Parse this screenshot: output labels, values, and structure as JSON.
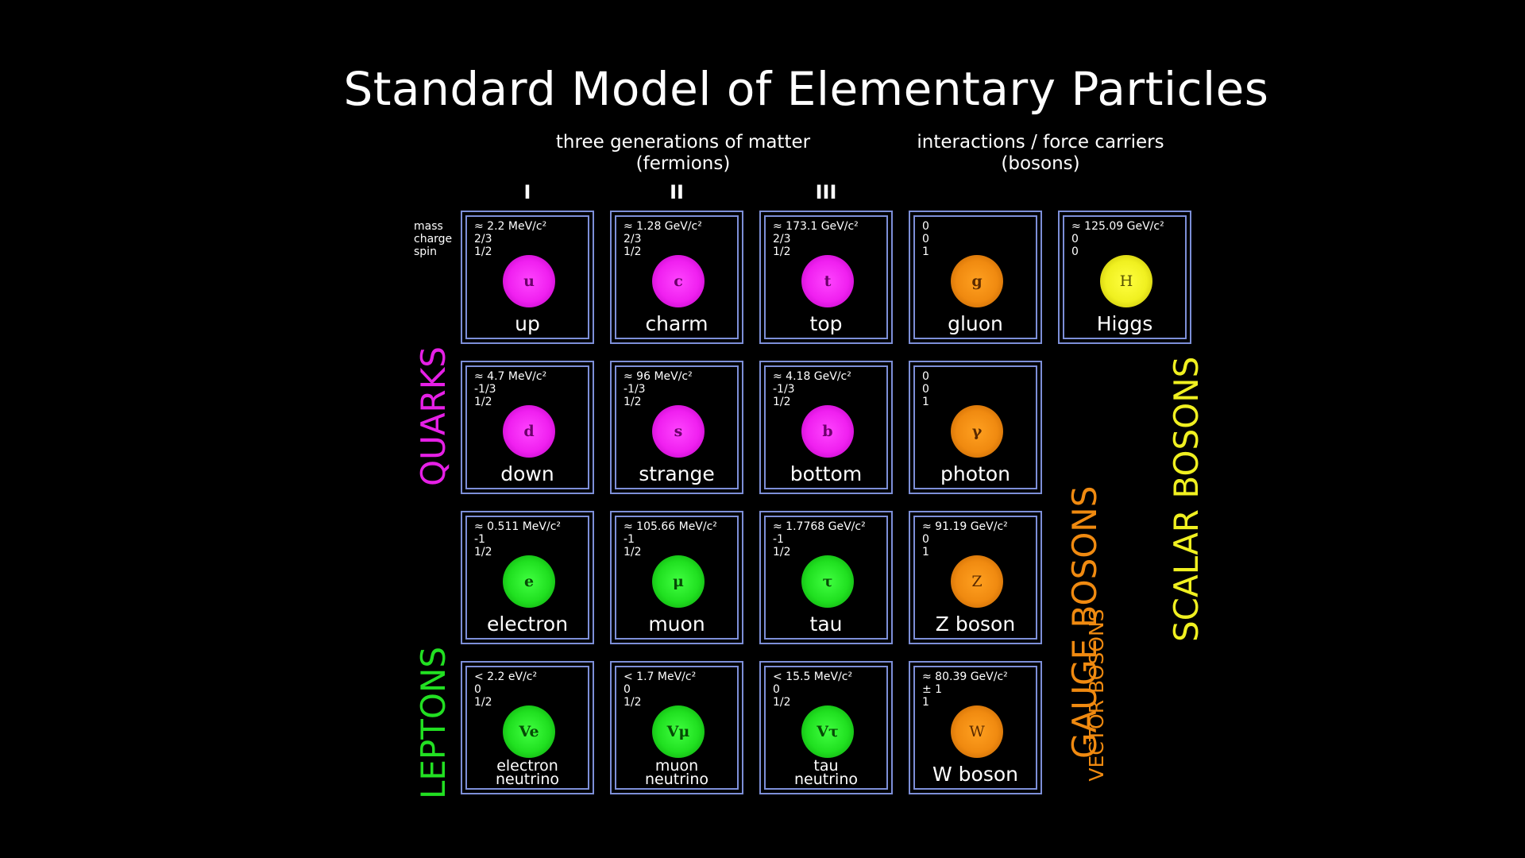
{
  "title": "Standard Model of Elementary Particles",
  "fermions_header": {
    "line1": "three generations of matter",
    "line2": "(fermions)"
  },
  "bosons_header": {
    "line1": "interactions / force carriers",
    "line2": "(bosons)"
  },
  "generations": [
    "I",
    "II",
    "III"
  ],
  "property_labels": [
    "mass",
    "charge",
    "spin"
  ],
  "group_labels": {
    "quarks": "QUARKS",
    "leptons": "LEPTONS",
    "gauge_bosons": "GAUGE BOSONS",
    "vector_bosons": "VECTOR BOSONS",
    "scalar_bosons": "SCALAR BOSONS"
  },
  "colors": {
    "quarks": "#e620e6",
    "leptons": "#22e022",
    "gauge_bosons": "#f08a10",
    "scalar_bosons": "#f0f020",
    "cell_border": "#7d8fd8"
  },
  "particles": [
    {
      "symbol": "u",
      "name": "up",
      "mass": "≈ 2.2 MeV/c²",
      "charge": "2/3",
      "spin": "1/2",
      "color": "magenta"
    },
    {
      "symbol": "c",
      "name": "charm",
      "mass": "≈ 1.28 GeV/c²",
      "charge": "2/3",
      "spin": "1/2",
      "color": "magenta"
    },
    {
      "symbol": "t",
      "name": "top",
      "mass": "≈ 173.1 GeV/c²",
      "charge": "2/3",
      "spin": "1/2",
      "color": "magenta"
    },
    {
      "symbol": "g",
      "name": "gluon",
      "mass": "0",
      "charge": "0",
      "spin": "1",
      "color": "orange"
    },
    {
      "symbol": "H",
      "name": "Higgs",
      "mass": "≈ 125.09 GeV/c²",
      "charge": "0",
      "spin": "0",
      "color": "yellow"
    },
    {
      "symbol": "d",
      "name": "down",
      "mass": "≈ 4.7 MeV/c²",
      "charge": "-1/3",
      "spin": "1/2",
      "color": "magenta"
    },
    {
      "symbol": "s",
      "name": "strange",
      "mass": "≈ 96 MeV/c²",
      "charge": "-1/3",
      "spin": "1/2",
      "color": "magenta"
    },
    {
      "symbol": "b",
      "name": "bottom",
      "mass": "≈ 4.18 GeV/c²",
      "charge": "-1/3",
      "spin": "1/2",
      "color": "magenta"
    },
    {
      "symbol": "γ",
      "name": "photon",
      "mass": "0",
      "charge": "0",
      "spin": "1",
      "color": "orange"
    },
    {
      "symbol": "e",
      "name": "electron",
      "mass": "≈ 0.511 MeV/c²",
      "charge": "-1",
      "spin": "1/2",
      "color": "green"
    },
    {
      "symbol": "μ",
      "name": "muon",
      "mass": "≈ 105.66 MeV/c²",
      "charge": "-1",
      "spin": "1/2",
      "color": "green"
    },
    {
      "symbol": "τ",
      "name": "tau",
      "mass": "≈ 1.7768 GeV/c²",
      "charge": "-1",
      "spin": "1/2",
      "color": "green"
    },
    {
      "symbol": "Z",
      "name": "Z boson",
      "mass": "≈ 91.19 GeV/c²",
      "charge": "0",
      "spin": "1",
      "color": "orange"
    },
    {
      "symbol": "Ve",
      "name_line1": "electron",
      "name_line2": "neutrino",
      "mass": "< 2.2 eV/c²",
      "charge": "0",
      "spin": "1/2",
      "color": "green"
    },
    {
      "symbol": "Vμ",
      "name_line1": "muon",
      "name_line2": "neutrino",
      "mass": "< 1.7 MeV/c²",
      "charge": "0",
      "spin": "1/2",
      "color": "green"
    },
    {
      "symbol": "Vτ",
      "name_line1": "tau",
      "name_line2": "neutrino",
      "mass": "< 15.5 MeV/c²",
      "charge": "0",
      "spin": "1/2",
      "color": "green"
    },
    {
      "symbol": "W",
      "name": "W boson",
      "mass": "≈ 80.39 GeV/c²",
      "charge": "± 1",
      "spin": "1",
      "color": "orange"
    }
  ]
}
